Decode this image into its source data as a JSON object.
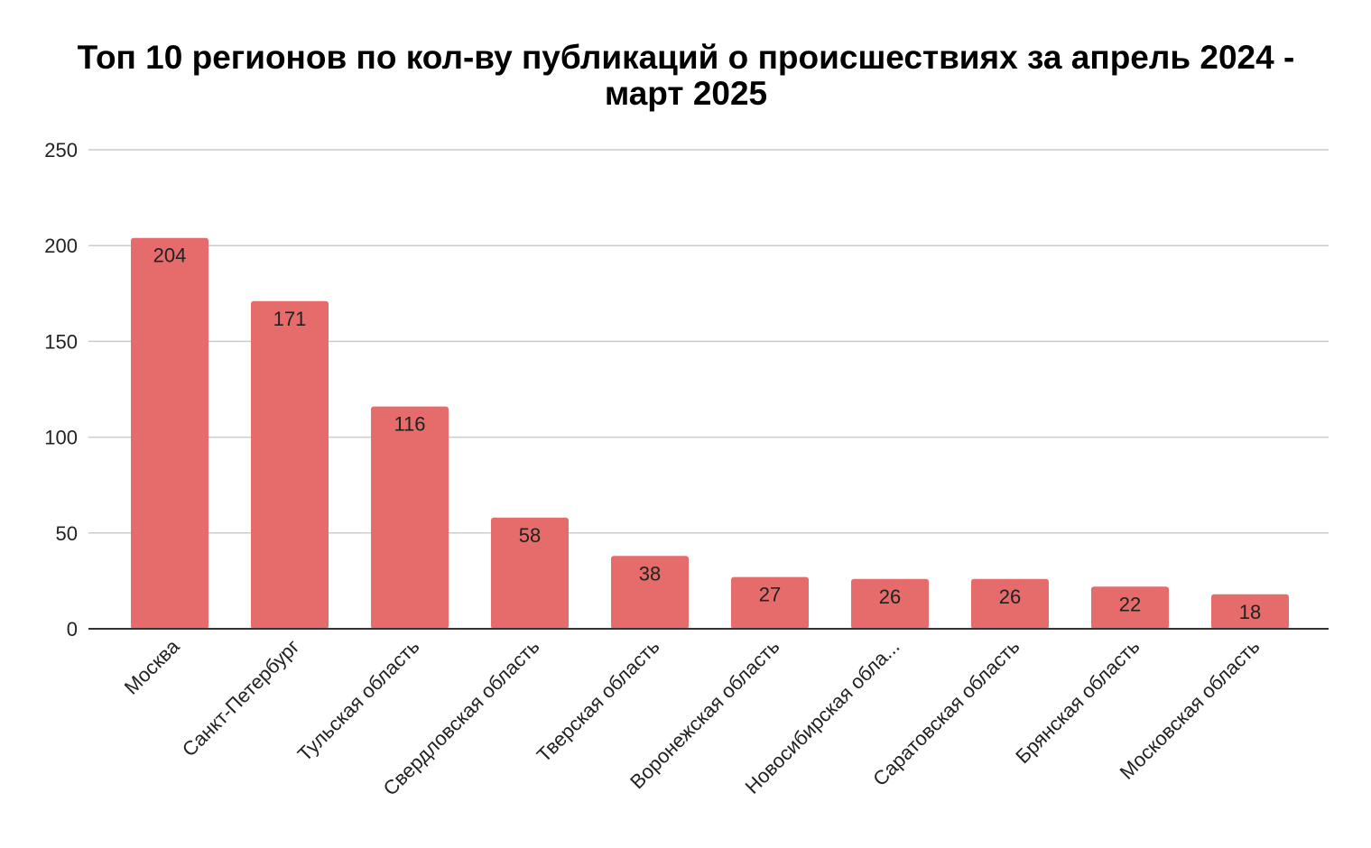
{
  "chart_data": {
    "type": "bar",
    "title": "Топ 10 регионов по кол-ву публикаций о происшествиях за апрель 2024 - март 2025",
    "categories": [
      "Москва",
      "Санкт-Петербург",
      "Тульская область",
      "Свердловская область",
      "Тверская область",
      "Воронежская область",
      "Новосибирская обла...",
      "Саратовская область",
      "Брянская область",
      "Московская область"
    ],
    "values": [
      204,
      171,
      116,
      58,
      38,
      27,
      26,
      26,
      22,
      18
    ],
    "ylim": [
      0,
      250
    ],
    "yticks": [
      0,
      50,
      100,
      150,
      200,
      250
    ],
    "xlabel": "",
    "ylabel": "",
    "grid": true,
    "legend": "none",
    "data_labels": true,
    "bar_color": "#e66b6b",
    "gridline_color": "#cccccc",
    "axis_color": "#333333"
  }
}
